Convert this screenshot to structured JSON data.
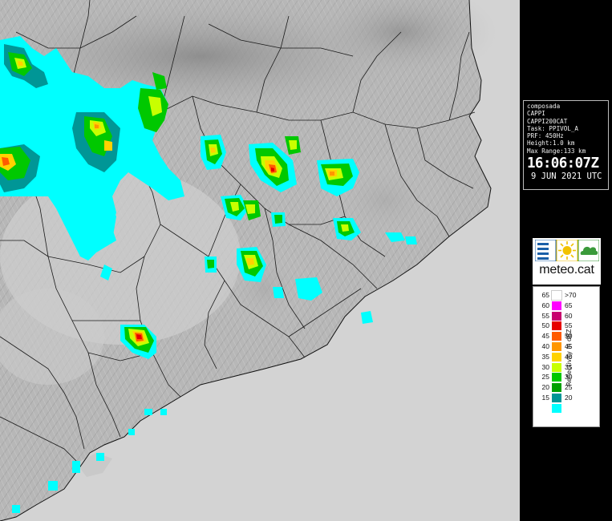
{
  "map": {
    "name": "radar-composite-map-catalonia",
    "background_color": "#d3d3d3",
    "sea_color": "#d3d3d3"
  },
  "info": {
    "lines": [
      "composada",
      "CAPPI",
      "CAPPI200CAT",
      "Task: PPIVOL_A",
      "PRF: 450Hz",
      "Height:1.0 km",
      "Max Range:133 km"
    ],
    "time": "16:06:07Z",
    "date": "9 JUN 2021 UTC"
  },
  "logo": {
    "text": "meteo.cat",
    "icons": [
      "fog-icon",
      "sun-icon",
      "cloud-icon"
    ],
    "colors": {
      "fog": "#1a5fa8",
      "sun": "#f2c200",
      "cloud": "#3a9a3a"
    }
  },
  "legend": {
    "title": "Reflectivity in dBZ",
    "rows": [
      {
        "lo": "65",
        "hi": ">70",
        "color": "#ffffff"
      },
      {
        "lo": "60",
        "hi": "65",
        "color": "#ff00ff"
      },
      {
        "lo": "55",
        "hi": "60",
        "color": "#c8006e"
      },
      {
        "lo": "50",
        "hi": "55",
        "color": "#e60000"
      },
      {
        "lo": "45",
        "hi": "50",
        "color": "#ff5a00"
      },
      {
        "lo": "40",
        "hi": "45",
        "color": "#ff9600"
      },
      {
        "lo": "35",
        "hi": "40",
        "color": "#ffd200"
      },
      {
        "lo": "30",
        "hi": "35",
        "color": "#c8ff00"
      },
      {
        "lo": "25",
        "hi": "30",
        "color": "#00c800"
      },
      {
        "lo": "20",
        "hi": "25",
        "color": "#00a000"
      },
      {
        "lo": "15",
        "hi": "20",
        "color": "#009696"
      },
      {
        "lo": "",
        "hi": "",
        "color": "#00ffff"
      }
    ]
  }
}
